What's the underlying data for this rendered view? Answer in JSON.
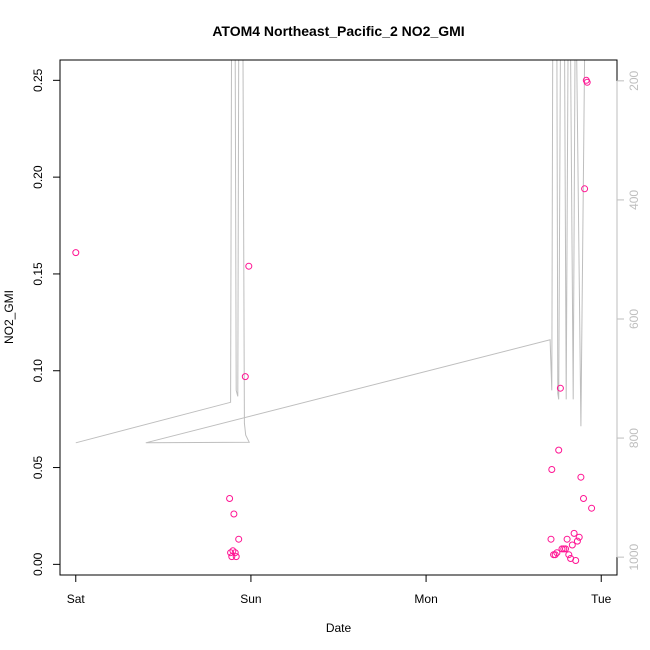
{
  "chart_data": {
    "type": "scatter",
    "title": "ATOM4 Northeast_Pacific_2 NO2_GMI",
    "xlabel": "Date",
    "ylabel": "NO2_GMI",
    "x_unit": "days since Sat 00:00",
    "xlim": [
      -0.09,
      3.09
    ],
    "ylim": [
      -0.0055,
      0.2605
    ],
    "x_ticks": [
      {
        "value": 0,
        "label": "Sat"
      },
      {
        "value": 1,
        "label": "Sun"
      },
      {
        "value": 2,
        "label": "Mon"
      },
      {
        "value": 3,
        "label": "Tue"
      }
    ],
    "y_ticks": [
      {
        "value": 0.0,
        "label": "0.00"
      },
      {
        "value": 0.05,
        "label": "0.05"
      },
      {
        "value": 0.1,
        "label": "0.10"
      },
      {
        "value": 0.15,
        "label": "0.15"
      },
      {
        "value": 0.2,
        "label": "0.20"
      },
      {
        "value": 0.25,
        "label": "0.25"
      }
    ],
    "right_axis": {
      "reversed": true,
      "range": [
        1030,
        165
      ],
      "ticks": [
        {
          "value": 200,
          "label": "200"
        },
        {
          "value": 400,
          "label": "400"
        },
        {
          "value": 600,
          "label": "600"
        },
        {
          "value": 800,
          "label": "800"
        },
        {
          "value": 1000,
          "label": "1000"
        }
      ],
      "color": "#bebebe"
    },
    "points_color": "#ff1493",
    "line_color": "#bebebe",
    "points": [
      {
        "x": 0.0,
        "y": 0.161
      },
      {
        "x": 0.878,
        "y": 0.034
      },
      {
        "x": 0.884,
        "y": 0.006
      },
      {
        "x": 0.891,
        "y": 0.004
      },
      {
        "x": 0.897,
        "y": 0.007
      },
      {
        "x": 0.903,
        "y": 0.026
      },
      {
        "x": 0.91,
        "y": 0.006
      },
      {
        "x": 0.916,
        "y": 0.004
      },
      {
        "x": 0.93,
        "y": 0.013
      },
      {
        "x": 0.968,
        "y": 0.097
      },
      {
        "x": 0.988,
        "y": 0.154
      },
      {
        "x": 2.713,
        "y": 0.013
      },
      {
        "x": 2.718,
        "y": 0.049
      },
      {
        "x": 2.728,
        "y": 0.005
      },
      {
        "x": 2.737,
        "y": 0.005
      },
      {
        "x": 2.747,
        "y": 0.006
      },
      {
        "x": 2.757,
        "y": 0.059
      },
      {
        "x": 2.767,
        "y": 0.091
      },
      {
        "x": 2.776,
        "y": 0.008
      },
      {
        "x": 2.786,
        "y": 0.008
      },
      {
        "x": 2.796,
        "y": 0.008
      },
      {
        "x": 2.805,
        "y": 0.013
      },
      {
        "x": 2.815,
        "y": 0.005
      },
      {
        "x": 2.825,
        "y": 0.003
      },
      {
        "x": 2.835,
        "y": 0.01
      },
      {
        "x": 2.845,
        "y": 0.016
      },
      {
        "x": 2.854,
        "y": 0.002
      },
      {
        "x": 2.864,
        "y": 0.012
      },
      {
        "x": 2.874,
        "y": 0.014
      },
      {
        "x": 2.884,
        "y": 0.045
      },
      {
        "x": 2.899,
        "y": 0.034
      },
      {
        "x": 2.905,
        "y": 0.194
      },
      {
        "x": 2.915,
        "y": 0.25
      },
      {
        "x": 2.92,
        "y": 0.249
      },
      {
        "x": 2.945,
        "y": 0.029
      }
    ],
    "line_pressure": [
      {
        "x": 0.0,
        "p": 808
      },
      {
        "x": 0.884,
        "p": 740
      },
      {
        "x": 0.889,
        "p": 160
      },
      {
        "x": 0.91,
        "p": 160
      },
      {
        "x": 0.916,
        "p": 720
      },
      {
        "x": 0.925,
        "p": 730
      },
      {
        "x": 0.93,
        "p": 160
      },
      {
        "x": 0.955,
        "p": 160
      },
      {
        "x": 0.963,
        "p": 775
      },
      {
        "x": 0.97,
        "p": 795
      },
      {
        "x": 0.99,
        "p": 807
      },
      {
        "x": 0.4,
        "p": 808
      },
      {
        "x": 2.708,
        "p": 635
      },
      {
        "x": 2.718,
        "p": 720
      },
      {
        "x": 2.723,
        "p": 160
      },
      {
        "x": 2.747,
        "p": 160
      },
      {
        "x": 2.752,
        "p": 725
      },
      {
        "x": 2.757,
        "p": 735
      },
      {
        "x": 2.767,
        "p": 160
      },
      {
        "x": 2.791,
        "p": 160
      },
      {
        "x": 2.8,
        "p": 735
      },
      {
        "x": 2.81,
        "p": 160
      },
      {
        "x": 2.825,
        "p": 160
      },
      {
        "x": 2.84,
        "p": 735
      },
      {
        "x": 2.85,
        "p": 160
      },
      {
        "x": 2.86,
        "p": 160
      },
      {
        "x": 2.884,
        "p": 780
      },
      {
        "x": 2.905,
        "p": 160
      },
      {
        "x": 2.93,
        "p": 160
      }
    ]
  }
}
